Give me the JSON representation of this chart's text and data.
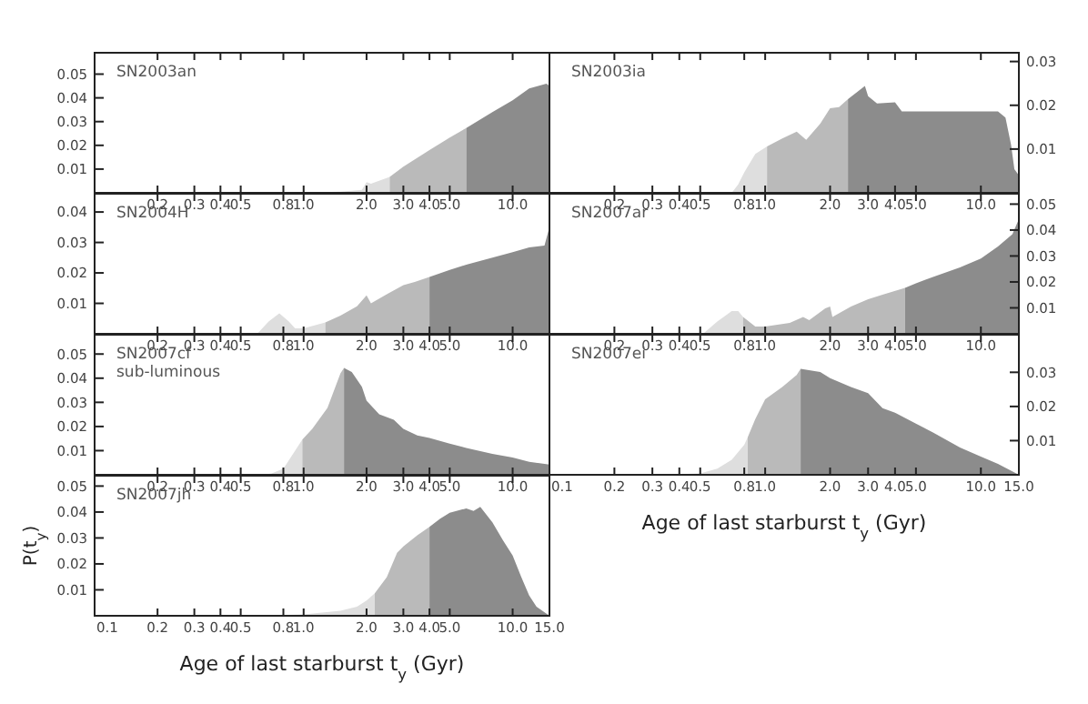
{
  "chart_data": [
    {
      "type": "area",
      "title": "SN2003an",
      "log": "x",
      "xlim": [
        0.1,
        15
      ],
      "ylim": [
        0,
        0.059
      ],
      "xticks": [
        0.2,
        0.3,
        0.4,
        0.5,
        0.8,
        {
          "value": 1,
          "label": "1.0"
        },
        {
          "value": 2,
          "label": "2.0"
        },
        {
          "value": 3,
          "label": "3.0"
        },
        {
          "value": 4,
          "label": "4.0"
        },
        {
          "value": 5,
          "label": "5.0"
        },
        {
          "value": 10,
          "label": "10.0"
        }
      ],
      "yticks": [
        0.01,
        0.02,
        0.03,
        0.04,
        0.05
      ],
      "series": [
        {
          "color": "#dedede",
          "x": [
            0.6,
            0.75,
            0.85,
            1.0,
            1.5,
            1.9,
            2.0,
            2.1,
            2.58
          ],
          "values": [
            0,
            0.0003,
            0.0001,
            0.0001,
            0.0005,
            0.0012,
            0.0045,
            0.0038,
            0.0067
          ]
        },
        {
          "color": "#bababa",
          "x": [
            2.58,
            3.0,
            4.0,
            5.0,
            6.0
          ],
          "values": [
            0.0067,
            0.011,
            0.018,
            0.0233,
            0.0273
          ]
        },
        {
          "color": "#8c8c8c",
          "x": [
            6.0,
            8.0,
            10,
            12,
            14.5,
            15
          ],
          "values": [
            0.0273,
            0.034,
            0.039,
            0.044,
            0.046,
            0.045
          ]
        }
      ]
    },
    {
      "type": "area",
      "title": "SN2003ia",
      "log": "x",
      "xlim": [
        0.1,
        15
      ],
      "ylim": [
        0,
        0.032
      ],
      "xticks": [
        0.2,
        0.3,
        0.4,
        0.5,
        0.8,
        {
          "value": 1,
          "label": "1.0"
        },
        {
          "value": 2,
          "label": "2.0"
        },
        {
          "value": 3,
          "label": "3.0"
        },
        {
          "value": 4,
          "label": "4.0"
        },
        {
          "value": 5,
          "label": "5.0"
        },
        {
          "value": 10,
          "label": "10.0"
        }
      ],
      "yticks": [
        0.01,
        0.02,
        0.03
      ],
      "series": [
        {
          "color": "#dedede",
          "x": [
            0.7,
            0.75,
            0.8,
            0.9,
            1.02
          ],
          "values": [
            0,
            0.0019,
            0.0047,
            0.0089,
            0.0106
          ]
        },
        {
          "color": "#bababa",
          "x": [
            1.02,
            1.2,
            1.4,
            1.55,
            1.8,
            2.0,
            2.2,
            2.42
          ],
          "values": [
            0.0106,
            0.0124,
            0.014,
            0.0121,
            0.0158,
            0.0193,
            0.0196,
            0.0214
          ]
        },
        {
          "color": "#8c8c8c",
          "x": [
            2.42,
            2.9,
            3.0,
            3.3,
            4.0,
            4.3,
            10,
            12,
            13,
            13.8,
            14.3,
            15
          ],
          "values": [
            0.0214,
            0.0244,
            0.0221,
            0.0204,
            0.0207,
            0.0186,
            0.0186,
            0.0186,
            0.0172,
            0.011,
            0.0054,
            0.004
          ]
        }
      ]
    },
    {
      "type": "area",
      "title": "SN2004H",
      "log": "x",
      "xlim": [
        0.1,
        15
      ],
      "ylim": [
        0,
        0.046
      ],
      "xticks": [
        0.2,
        0.3,
        0.4,
        0.5,
        0.8,
        {
          "value": 1,
          "label": "1.0"
        },
        {
          "value": 2,
          "label": "2.0"
        },
        {
          "value": 3,
          "label": "3.0"
        },
        {
          "value": 4,
          "label": "4.0"
        },
        {
          "value": 5,
          "label": "5.0"
        },
        {
          "value": 10,
          "label": "10.0"
        }
      ],
      "yticks": [
        0.01,
        0.02,
        0.03,
        0.04
      ],
      "series": [
        {
          "color": "#dedede",
          "x": [
            0.6,
            0.68,
            0.765,
            0.85,
            0.91,
            1.0,
            1.27
          ],
          "values": [
            0,
            0.004,
            0.0067,
            0.004,
            0.0018,
            0.0018,
            0.0037
          ]
        },
        {
          "color": "#bababa",
          "x": [
            1.27,
            1.5,
            1.8,
            2.0,
            2.1,
            2.5,
            3.0,
            3.4,
            4.0
          ],
          "values": [
            0.0037,
            0.006,
            0.009,
            0.0126,
            0.01,
            0.013,
            0.016,
            0.017,
            0.0187
          ]
        },
        {
          "color": "#8c8c8c",
          "x": [
            4.0,
            5.0,
            6.0,
            8.0,
            10,
            12,
            14.2,
            15
          ],
          "values": [
            0.0187,
            0.021,
            0.0227,
            0.025,
            0.0268,
            0.0284,
            0.029,
            0.035
          ]
        }
      ]
    },
    {
      "type": "area",
      "title": "SN2007ar",
      "log": "x",
      "xlim": [
        0.1,
        15
      ],
      "ylim": [
        0,
        0.054
      ],
      "xticks": [
        0.2,
        0.3,
        0.4,
        0.5,
        0.8,
        {
          "value": 1,
          "label": "1.0"
        },
        {
          "value": 2,
          "label": "2.0"
        },
        {
          "value": 3,
          "label": "3.0"
        },
        {
          "value": 4,
          "label": "4.0"
        },
        {
          "value": 5,
          "label": "5.0"
        },
        {
          "value": 10,
          "label": "10.0"
        }
      ],
      "yticks": [
        0.01,
        0.02,
        0.03,
        0.04,
        0.05
      ],
      "series": [
        {
          "color": "#dedede",
          "x": [
            0.515,
            0.6,
            0.7,
            0.75,
            0.79
          ],
          "values": [
            0,
            0.0047,
            0.0088,
            0.0088,
            0.0065
          ]
        },
        {
          "color": "#bababa",
          "x": [
            0.79,
            0.9,
            1.0,
            1.3,
            1.5,
            1.6,
            1.9,
            2.0,
            2.05,
            2.5,
            3.0,
            3.5,
            4.45
          ],
          "values": [
            0.0065,
            0.0028,
            0.0028,
            0.0042,
            0.0065,
            0.0053,
            0.0098,
            0.0105,
            0.0065,
            0.0105,
            0.0133,
            0.0151,
            0.0177
          ]
        },
        {
          "color": "#8c8c8c",
          "x": [
            4.45,
            5.0,
            6.0,
            8.0,
            10,
            12,
            14,
            15
          ],
          "values": [
            0.0177,
            0.0195,
            0.0219,
            0.0256,
            0.029,
            0.0337,
            0.0384,
            0.0442
          ]
        }
      ]
    },
    {
      "type": "area",
      "title": "SN2007cf",
      "subtitle": "sub-luminous",
      "log": "x",
      "xlim": [
        0.1,
        15
      ],
      "ylim": [
        0,
        0.058
      ],
      "xticks": [
        0.2,
        0.3,
        0.4,
        0.5,
        0.8,
        {
          "value": 1,
          "label": "1.0"
        },
        {
          "value": 2,
          "label": "2.0"
        },
        {
          "value": 3,
          "label": "3.0"
        },
        {
          "value": 4,
          "label": "4.0"
        },
        {
          "value": 5,
          "label": "5.0"
        },
        {
          "value": 10,
          "label": "10.0"
        }
      ],
      "yticks": [
        0.01,
        0.02,
        0.03,
        0.04,
        0.05
      ],
      "series": [
        {
          "color": "#dedede",
          "x": [
            0.59,
            0.7,
            0.8,
            0.986
          ],
          "values": [
            0,
            0.0005,
            0.0025,
            0.0146
          ]
        },
        {
          "color": "#bababa",
          "x": [
            0.986,
            1.1,
            1.3,
            1.5,
            1.56
          ],
          "values": [
            0.0146,
            0.019,
            0.0277,
            0.042,
            0.0443
          ]
        },
        {
          "color": "#8c8c8c",
          "x": [
            1.56,
            1.7,
            1.9,
            2.0,
            2.3,
            2.7,
            3.0,
            3.5,
            4.0,
            5.0,
            6.0,
            8.0,
            10,
            12,
            15
          ],
          "values": [
            0.0443,
            0.0426,
            0.0364,
            0.0307,
            0.025,
            0.0228,
            0.019,
            0.0163,
            0.0153,
            0.0129,
            0.0111,
            0.0087,
            0.0072,
            0.0054,
            0.0042
          ]
        }
      ]
    },
    {
      "type": "area",
      "title": "SN2007ei",
      "xlabel": "Age of last starburst t$_{y}$ (Gyr)",
      "log": "x",
      "xlim": [
        0.1,
        15
      ],
      "ylim": [
        0,
        0.041
      ],
      "xticks": [
        0.1,
        0.2,
        0.3,
        0.4,
        0.5,
        0.8,
        {
          "value": 1,
          "label": "1.0"
        },
        {
          "value": 2,
          "label": "2.0"
        },
        {
          "value": 3,
          "label": "3.0"
        },
        {
          "value": 4,
          "label": "4.0"
        },
        {
          "value": 5,
          "label": "5.0"
        },
        {
          "value": 10,
          "label": "10.0"
        },
        {
          "value": 15,
          "label": "15.0"
        }
      ],
      "yticks": [
        0.01,
        0.02,
        0.03
      ],
      "series": [
        {
          "color": "#dedede",
          "x": [
            0.3,
            0.5,
            0.6,
            0.7,
            0.8,
            0.83
          ],
          "values": [
            0,
            0.0004,
            0.0018,
            0.0044,
            0.0088,
            0.011
          ]
        },
        {
          "color": "#bababa",
          "x": [
            0.83,
            0.9,
            1.0,
            1.2,
            1.4,
            1.46
          ],
          "values": [
            0.011,
            0.0163,
            0.0221,
            0.0257,
            0.0292,
            0.031
          ]
        },
        {
          "color": "#8c8c8c",
          "x": [
            1.46,
            1.8,
            2.0,
            2.5,
            3.0,
            3.5,
            4.0,
            5.0,
            6.0,
            8.0,
            10,
            12,
            15
          ],
          "values": [
            0.031,
            0.0301,
            0.0283,
            0.0257,
            0.0239,
            0.0195,
            0.0182,
            0.015,
            0.0124,
            0.008,
            0.0053,
            0.0032,
            0
          ]
        }
      ]
    },
    {
      "type": "area",
      "title": "SN2007jh",
      "xlabel": "Age of last starburst t$_{y}$ (Gyr)",
      "ylabel": "P(t$_{y}$)",
      "log": "x",
      "xlim": [
        0.1,
        15
      ],
      "ylim": [
        0,
        0.054
      ],
      "xticks": [
        0.1,
        0.2,
        0.3,
        0.4,
        0.5,
        0.8,
        {
          "value": 1,
          "label": "1.0"
        },
        {
          "value": 2,
          "label": "2.0"
        },
        {
          "value": 3,
          "label": "3.0"
        },
        {
          "value": 4,
          "label": "4.0"
        },
        {
          "value": 5,
          "label": "5.0"
        },
        {
          "value": 10,
          "label": "10.0"
        },
        {
          "value": 15,
          "label": "15.0"
        }
      ],
      "yticks": [
        0.01,
        0.02,
        0.03,
        0.04,
        0.05
      ],
      "series": [
        {
          "color": "#dedede",
          "x": [
            0.6,
            1.0,
            1.5,
            1.8,
            2.0,
            2.19
          ],
          "values": [
            0,
            0.0005,
            0.0019,
            0.0035,
            0.0059,
            0.0087
          ]
        },
        {
          "color": "#bababa",
          "x": [
            2.19,
            2.5,
            2.8,
            3.0,
            3.5,
            4.0
          ],
          "values": [
            0.0087,
            0.0149,
            0.0243,
            0.0267,
            0.031,
            0.0343
          ]
        },
        {
          "color": "#8c8c8c",
          "x": [
            4.0,
            4.5,
            5.0,
            6.0,
            6.5,
            7.0,
            8.0,
            9.0,
            10,
            11,
            12,
            13,
            15
          ],
          "values": [
            0.0343,
            0.0374,
            0.0397,
            0.0414,
            0.0404,
            0.042,
            0.036,
            0.029,
            0.0232,
            0.0149,
            0.0078,
            0.0035,
            0
          ]
        }
      ]
    }
  ]
}
